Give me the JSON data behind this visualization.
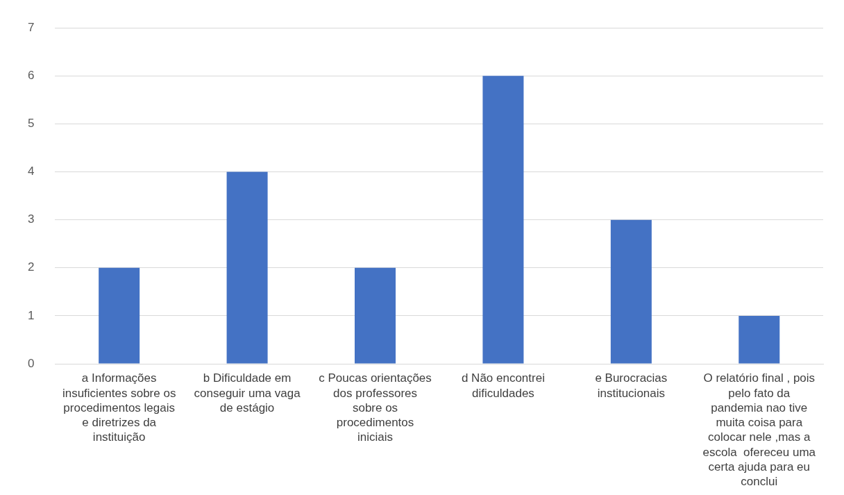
{
  "chart_data": {
    "type": "bar",
    "categories": [
      "a Informações insuficientes sobre os procedimentos legais e diretrizes da instituição",
      "b Dificuldade em conseguir uma vaga de estágio",
      "c Poucas orientações dos professores sobre os procedimentos iniciais",
      "d Não encontrei dificuldades",
      "e Burocracias institucionais",
      "O relatório final , pois pelo fato da pandemia nao tive muita coisa para colocar nele ,mas a escola  ofereceu uma certa ajuda para eu conclui"
    ],
    "values": [
      2,
      4,
      2,
      6,
      3,
      1
    ],
    "color": "#4472c4",
    "ylim": [
      0,
      7
    ],
    "yticks": [
      0,
      1,
      2,
      3,
      4,
      5,
      6,
      7
    ],
    "grid": "y"
  }
}
